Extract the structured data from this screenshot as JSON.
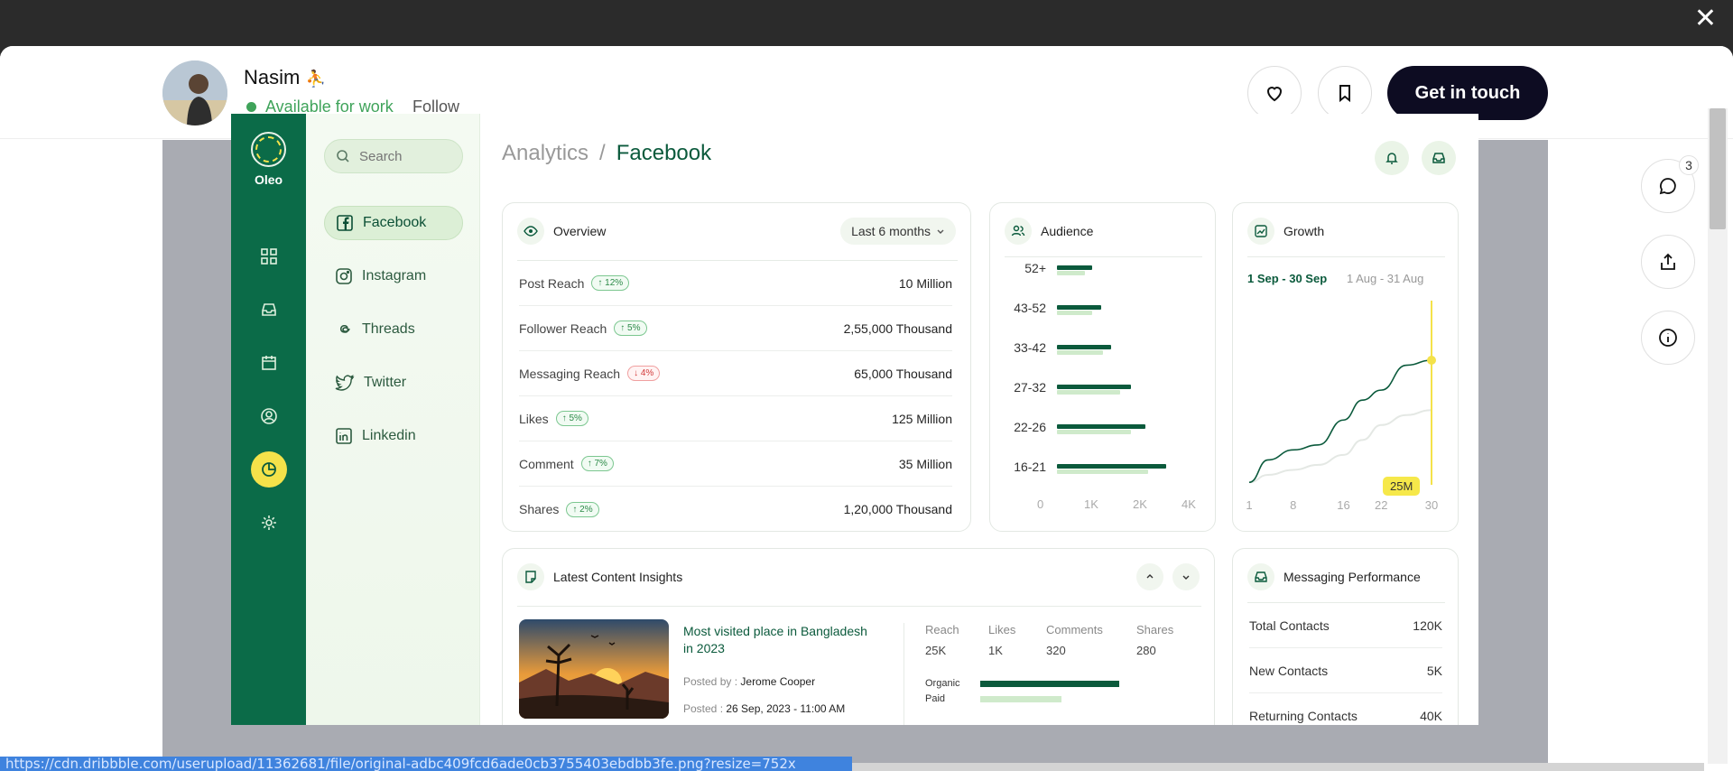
{
  "profile": {
    "name": "Nasim",
    "emoji": "⛹",
    "availability": "Available for work",
    "follow_label": "Follow"
  },
  "actions": {
    "cta_label": "Get in touch",
    "comments_count": "3"
  },
  "app": {
    "brand": "Oleo",
    "search_placeholder": "Search",
    "nav": [
      "Facebook",
      "Instagram",
      "Threads",
      "Twitter",
      "Linkedin"
    ],
    "breadcrumb": {
      "parent": "Analytics",
      "separator": "/",
      "current": "Facebook"
    }
  },
  "overview": {
    "title": "Overview",
    "period": "Last 6 months",
    "rows": [
      {
        "label": "Post Reach",
        "change": "12%",
        "direction": "up",
        "value": "10 Million"
      },
      {
        "label": "Follower Reach",
        "change": "5%",
        "direction": "up",
        "value": "2,55,000 Thousand"
      },
      {
        "label": "Messaging Reach",
        "change": "4%",
        "direction": "down",
        "value": "65,000 Thousand"
      },
      {
        "label": "Likes",
        "change": "5%",
        "direction": "up",
        "value": "125 Million"
      },
      {
        "label": "Comment",
        "change": "7%",
        "direction": "up",
        "value": "35 Million"
      },
      {
        "label": "Shares",
        "change": "2%",
        "direction": "up",
        "value": "1,20,000 Thousand"
      }
    ]
  },
  "audience": {
    "title": "Audience",
    "x_ticks": [
      "0",
      "1K",
      "2K",
      "4K"
    ]
  },
  "growth": {
    "title": "Growth",
    "range_active": "1 Sep - 30 Sep",
    "range_compare": "1 Aug - 31 Aug",
    "tooltip": "25M",
    "x_ticks": [
      "1",
      "8",
      "16",
      "22",
      "30"
    ]
  },
  "insights": {
    "title": "Latest Content Insights",
    "post_title": "Most visited place in Bangladesh in 2023",
    "posted_by_label": "Posted by :",
    "posted_by": "Jerome Cooper",
    "posted_on_label": "Posted :",
    "posted_on": "26 Sep, 2023 - 11:00 AM",
    "metrics": [
      {
        "label": "Reach",
        "value": "25K"
      },
      {
        "label": "Likes",
        "value": "1K"
      },
      {
        "label": "Comments",
        "value": "320"
      },
      {
        "label": "Shares",
        "value": "280"
      }
    ],
    "legend_organic": "Organic",
    "legend_paid": "Paid"
  },
  "messaging": {
    "title": "Messaging Performance",
    "rows": [
      {
        "label": "Total Contacts",
        "value": "120K"
      },
      {
        "label": "New Contacts",
        "value": "5K"
      },
      {
        "label": "Returning Contacts",
        "value": "40K"
      }
    ]
  },
  "status_bar": {
    "url": "https://cdn.dribbble.com/userupload/11362681/file/original-adbc409fcd6ade0cb3755403ebdbb3fe.png?resize=752x"
  },
  "chart_data": [
    {
      "type": "bar",
      "categories": [
        "52+",
        "43-52",
        "33-42",
        "27-32",
        "22-26",
        "16-21"
      ],
      "series": [
        {
          "values": [
            1.0,
            1.25,
            1.55,
            2.1,
            2.5,
            3.1
          ]
        },
        {
          "values": [
            0.8,
            1.0,
            1.3,
            1.8,
            2.1,
            2.6
          ]
        }
      ],
      "x_ticks": [
        "0",
        "1K",
        "2K",
        "4K"
      ],
      "orientation": "horizontal"
    },
    {
      "type": "line",
      "x": [
        1,
        4,
        8,
        12,
        16,
        19,
        22,
        26,
        30
      ],
      "series": [
        {
          "values": [
            0.5,
            5,
            7,
            8,
            13,
            17,
            19,
            24,
            25
          ]
        },
        {
          "values": [
            0.5,
            2,
            3,
            4,
            6,
            9,
            12,
            14,
            15
          ]
        }
      ],
      "x_ticks": [
        "1",
        "8",
        "16",
        "22",
        "30"
      ],
      "highlight": {
        "x": 30,
        "label": "25M"
      }
    }
  ]
}
